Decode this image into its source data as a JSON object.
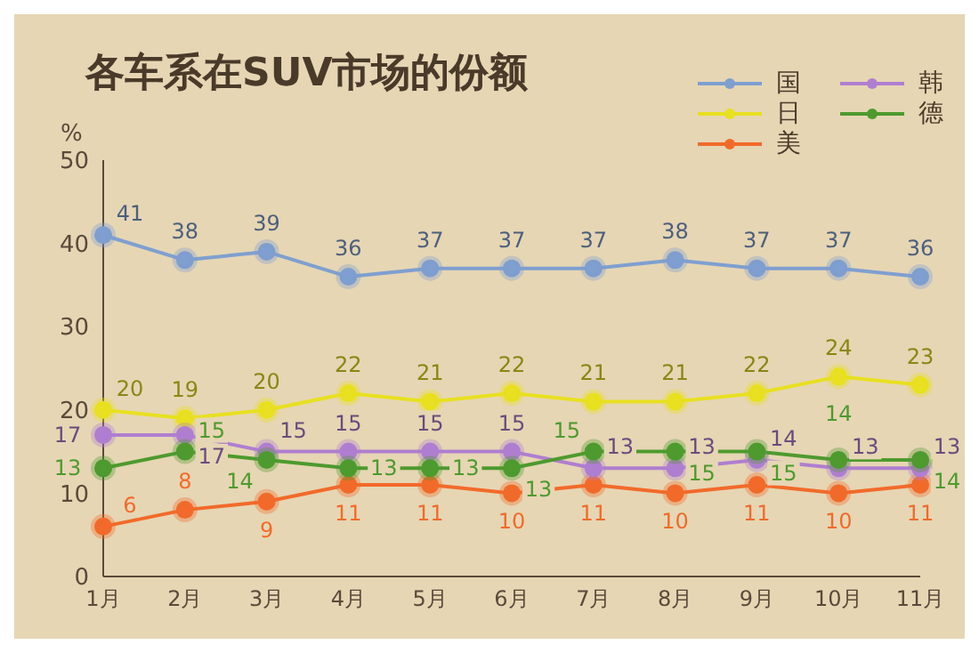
{
  "chart_data": {
    "type": "line",
    "title": "各车系在SUV市场的份额",
    "ylabel": "%",
    "categories": [
      "1月",
      "2月",
      "3月",
      "4月",
      "5月",
      "6月",
      "7月",
      "8月",
      "9月",
      "10月",
      "11月"
    ],
    "series": [
      {
        "name": "国",
        "color": "#7f9fd0",
        "values": [
          41,
          38,
          39,
          36,
          37,
          37,
          37,
          38,
          37,
          37,
          36
        ]
      },
      {
        "name": "日",
        "color": "#e8e020",
        "values": [
          20,
          19,
          20,
          22,
          21,
          22,
          21,
          21,
          22,
          24,
          23
        ]
      },
      {
        "name": "美",
        "color": "#f26a2a",
        "values": [
          6,
          8,
          9,
          11,
          11,
          10,
          11,
          10,
          11,
          10,
          11
        ]
      },
      {
        "name": "韩",
        "color": "#b07ed0",
        "values": [
          17,
          17,
          15,
          15,
          15,
          15,
          13,
          13,
          14,
          13,
          13
        ]
      },
      {
        "name": "德",
        "color": "#4e9a2e",
        "values": [
          13,
          15,
          14,
          13,
          13,
          13,
          15,
          15,
          15,
          14,
          14
        ]
      }
    ],
    "ylim": [
      0,
      50
    ],
    "yticks": [
      0,
      10,
      20,
      30,
      40,
      50
    ],
    "grid": false,
    "legend": "top right",
    "marker": "circle",
    "line_style": "solid",
    "data_labels": true
  }
}
